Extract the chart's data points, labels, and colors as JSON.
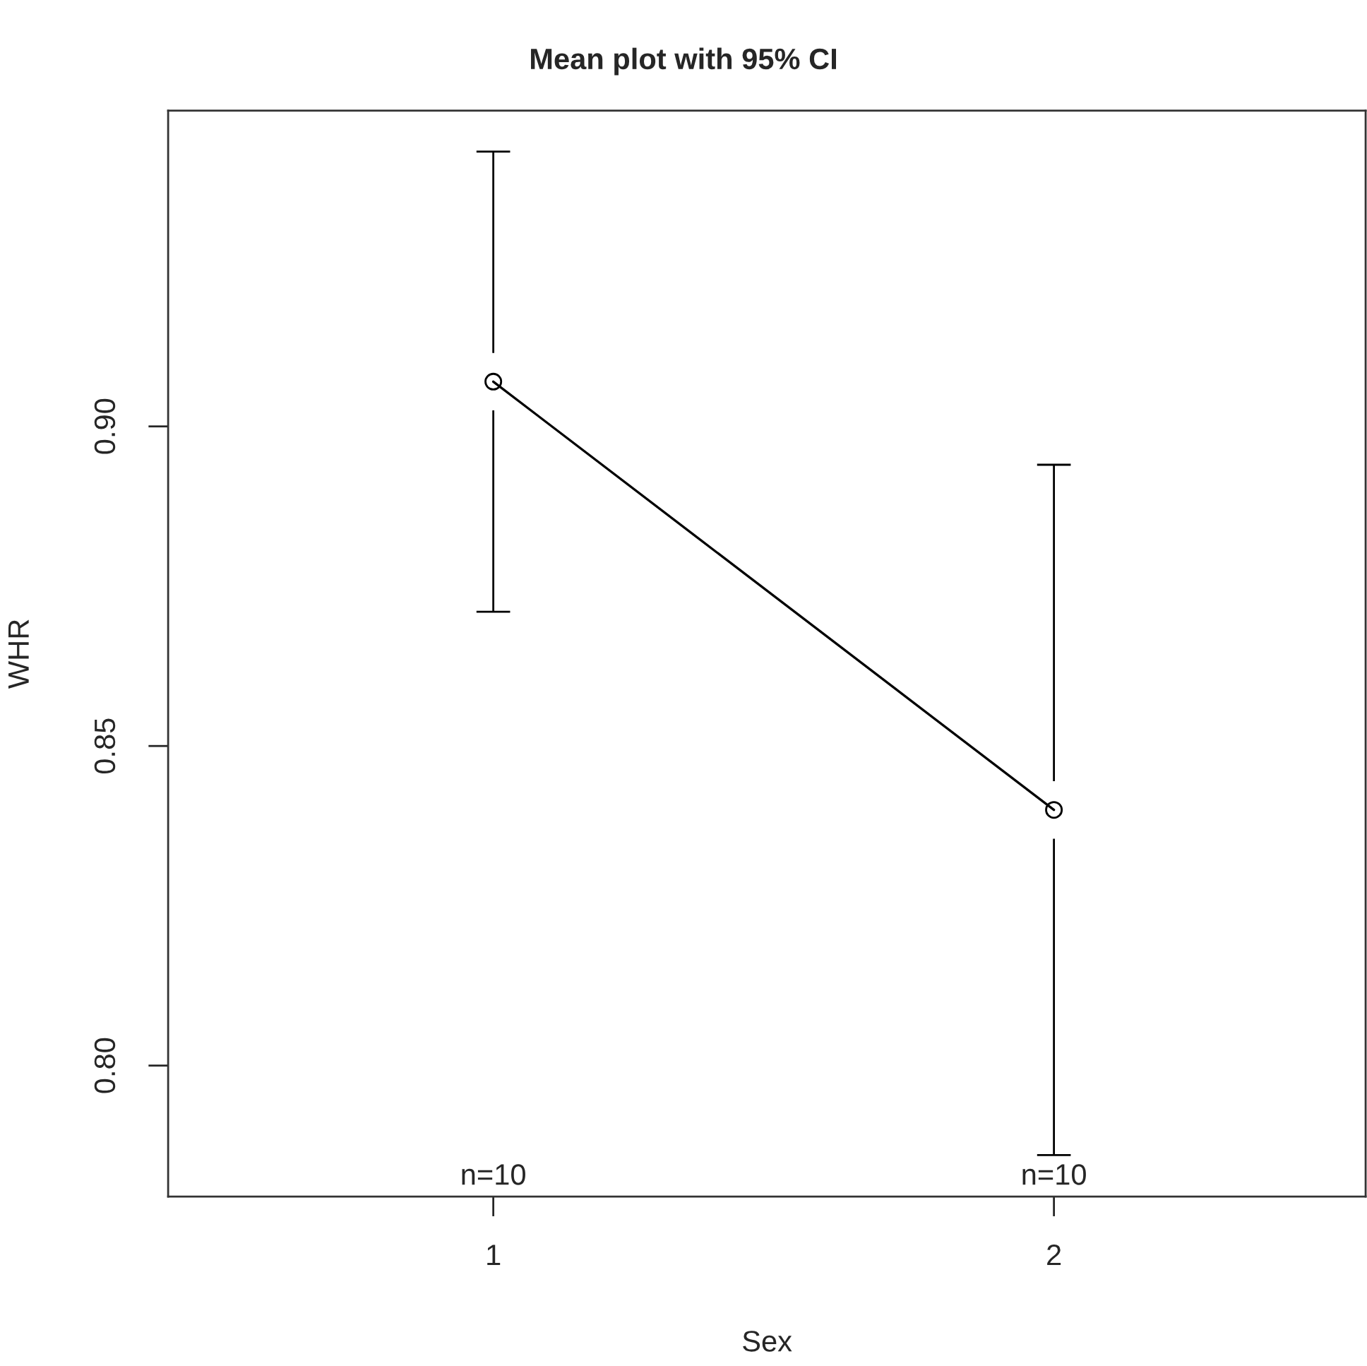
{
  "chart_data": {
    "type": "line",
    "title": "Mean plot with 95% CI",
    "xlabel": "Sex",
    "ylabel": "WHR",
    "categories": [
      "1",
      "2"
    ],
    "series": [
      {
        "color": "#000000",
        "values": [
          0.907,
          0.84
        ],
        "errors": [
          0.036,
          0.054
        ]
      }
    ],
    "marker": "circle",
    "line_style": "solid",
    "grid": false,
    "ylim": [
      0.7795,
      0.9494
    ],
    "yticks": [
      {
        "value": 0.8,
        "label": "0.80"
      },
      0.85,
      {
        "value": 0.9,
        "label": "0.90"
      }
    ],
    "annotations": [
      "n=10",
      "n=10"
    ]
  }
}
